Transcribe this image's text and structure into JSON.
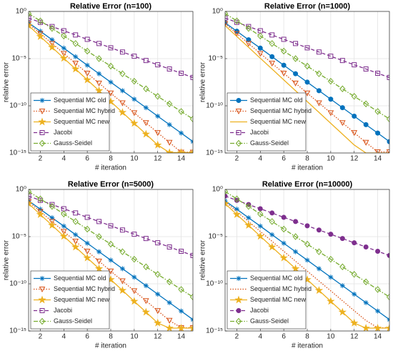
{
  "chart_data": [
    {
      "type": "line",
      "title": "Relative Error (n=100)",
      "x_label": "# iteration",
      "y_label": "relative error",
      "log_y": true,
      "grid": true,
      "legend": "lower left",
      "x": [
        1,
        2,
        3,
        4,
        5,
        6,
        7,
        8,
        9,
        10,
        11,
        12,
        13,
        14,
        15
      ],
      "xlim": [
        1,
        15
      ],
      "xticks": [
        2,
        4,
        6,
        8,
        10,
        12,
        14
      ],
      "ylim": [
        1e-15,
        1
      ],
      "yticks": [
        {
          "value": 1e-15,
          "label": "10⁻¹⁵"
        },
        {
          "value": 1e-10,
          "label": "10⁻¹⁰"
        },
        {
          "value": 1e-05,
          "label": "10⁻⁵"
        },
        {
          "value": 1,
          "label": "10⁰"
        }
      ],
      "series": [
        {
          "name": "Sequential MC old",
          "color": "#0072bd",
          "marker": "asterisk",
          "linestyle": "solid",
          "values": [
            0.063,
            0.008,
            0.001,
            0.00013,
            1.6e-05,
            2e-06,
            2.5e-07,
            3.2e-08,
            4e-09,
            5e-10,
            6.3e-11,
            8e-12,
            1e-12,
            1.3e-13,
            1.6e-14
          ]
        },
        {
          "name": "Sequential MC hybrid",
          "color": "#d95319",
          "marker": "triangle-down",
          "linestyle": "dotted",
          "values": [
            0.05,
            0.0045,
            0.0004,
            3.5e-05,
            3.2e-06,
            2.8e-07,
            2.5e-08,
            2.2e-09,
            2e-10,
            1.8e-11,
            1.6e-12,
            1.4e-13,
            1.3e-14,
            1.2e-15,
            1.2e-15
          ]
        },
        {
          "name": "Sequential MC new",
          "color": "#edb120",
          "marker": "star",
          "linestyle": "solid",
          "values": [
            0.032,
            0.0022,
            0.00016,
            1.1e-05,
            8e-07,
            5.6e-08,
            4e-09,
            2.8e-10,
            2e-11,
            1.4e-12,
            1e-13,
            7e-15,
            1.1e-15,
            1.1e-15,
            1.1e-15
          ]
        },
        {
          "name": "Jacobi",
          "color": "#7e2f8e",
          "marker": "square",
          "linestyle": "dashed",
          "values": [
            0.2,
            0.07,
            0.025,
            0.009,
            0.0032,
            0.0011,
            0.0004,
            0.00014,
            5e-05,
            1.8e-05,
            6.3e-06,
            2.2e-06,
            8e-07,
            2.8e-07,
            1e-07
          ]
        },
        {
          "name": "Gauss-Seidel",
          "color": "#77ac30",
          "marker": "diamond",
          "linestyle": "dashdot",
          "values": [
            0.6,
            0.1,
            0.016,
            0.0025,
            0.0004,
            6.3e-05,
            1e-05,
            1.6e-06,
            2.5e-07,
            4e-08,
            6.3e-09,
            1e-09,
            1.6e-10,
            2.5e-11,
            4e-12
          ]
        }
      ]
    },
    {
      "type": "line",
      "title": "Relative Error (n=1000)",
      "x_label": "# iteration",
      "y_label": "relative error",
      "log_y": true,
      "grid": true,
      "legend": "lower left",
      "x": [
        1,
        2,
        3,
        4,
        5,
        6,
        7,
        8,
        9,
        10,
        11,
        12,
        13,
        14,
        15
      ],
      "xlim": [
        1,
        15
      ],
      "xticks": [
        2,
        4,
        6,
        8,
        10,
        12,
        14
      ],
      "ylim": [
        1e-15,
        1
      ],
      "yticks": [
        {
          "value": 1e-15,
          "label": "10⁻¹⁵"
        },
        {
          "value": 1e-10,
          "label": "10⁻¹⁰"
        },
        {
          "value": 1e-05,
          "label": "10⁻⁵"
        },
        {
          "value": 1,
          "label": "10⁰"
        }
      ],
      "series": [
        {
          "name": "Sequential MC old",
          "color": "#0072bd",
          "marker": "circle",
          "linestyle": "solid",
          "values": [
            0.063,
            0.008,
            0.001,
            0.00013,
            1.6e-05,
            2e-06,
            2.5e-07,
            3.2e-08,
            4e-09,
            5e-10,
            6.3e-11,
            8e-12,
            1e-12,
            1.3e-13,
            1.6e-14
          ]
        },
        {
          "name": "Sequential MC hybrid",
          "color": "#d95319",
          "marker": "triangle-down",
          "linestyle": "dotted",
          "values": [
            0.05,
            0.0045,
            0.0004,
            3.5e-05,
            3.2e-06,
            2.8e-07,
            2.5e-08,
            2.2e-09,
            2e-10,
            1.8e-11,
            1.6e-12,
            1.4e-13,
            1.3e-14,
            1.3e-15,
            1.3e-15
          ]
        },
        {
          "name": "Sequential MC new",
          "color": "#edb120",
          "marker": "none",
          "linestyle": "solid",
          "values": [
            0.032,
            0.0022,
            0.00016,
            1.1e-05,
            8e-07,
            5.6e-08,
            4e-09,
            2.8e-10,
            2e-11,
            1.4e-12,
            1e-13,
            7e-15,
            1e-15,
            1e-15,
            1e-15
          ]
        },
        {
          "name": "Jacobi",
          "color": "#7e2f8e",
          "marker": "square",
          "linestyle": "dashed",
          "values": [
            0.2,
            0.07,
            0.025,
            0.009,
            0.0032,
            0.0011,
            0.0004,
            0.00014,
            5e-05,
            1.8e-05,
            6.3e-06,
            2.2e-06,
            8e-07,
            2.8e-07,
            1e-07
          ]
        },
        {
          "name": "Gauss-Seidel",
          "color": "#77ac30",
          "marker": "diamond",
          "linestyle": "dashdot",
          "values": [
            0.6,
            0.1,
            0.016,
            0.0025,
            0.0004,
            6.3e-05,
            1e-05,
            1.6e-06,
            2.5e-07,
            4e-08,
            6.3e-09,
            1e-09,
            1.6e-10,
            2.5e-11,
            4e-12
          ]
        }
      ]
    },
    {
      "type": "line",
      "title": "Relative Error (n=5000)",
      "x_label": "# iteration",
      "y_label": "relative error",
      "log_y": true,
      "grid": true,
      "legend": "lower left",
      "x": [
        1,
        2,
        3,
        4,
        5,
        6,
        7,
        8,
        9,
        10,
        11,
        12,
        13,
        14,
        15
      ],
      "xlim": [
        1,
        15
      ],
      "xticks": [
        2,
        4,
        6,
        8,
        10,
        12,
        14
      ],
      "ylim": [
        1e-15,
        1
      ],
      "yticks": [
        {
          "value": 1e-15,
          "label": "10⁻¹⁵"
        },
        {
          "value": 1e-10,
          "label": "10⁻¹⁰"
        },
        {
          "value": 1e-05,
          "label": "10⁻⁵"
        },
        {
          "value": 1,
          "label": "10⁰"
        }
      ],
      "series": [
        {
          "name": "Sequential MC old",
          "color": "#0072bd",
          "marker": "asterisk",
          "linestyle": "solid",
          "values": [
            0.063,
            0.008,
            0.001,
            0.00013,
            1.6e-05,
            2e-06,
            2.5e-07,
            3.2e-08,
            4e-09,
            5e-10,
            6.3e-11,
            8e-12,
            1e-12,
            1.3e-13,
            1.6e-14
          ]
        },
        {
          "name": "Sequential MC hybrid",
          "color": "#d95319",
          "marker": "triangle-down",
          "linestyle": "dotted",
          "values": [
            0.05,
            0.0045,
            0.0004,
            3.5e-05,
            3.2e-06,
            2.8e-07,
            2.5e-08,
            2.2e-09,
            2e-10,
            1.8e-11,
            1.6e-12,
            1.4e-13,
            1.3e-14,
            2.2e-15,
            2.2e-15
          ]
        },
        {
          "name": "Sequential MC new",
          "color": "#edb120",
          "marker": "star",
          "linestyle": "solid",
          "values": [
            0.032,
            0.0022,
            0.00016,
            1.1e-05,
            8e-07,
            5.6e-08,
            4e-09,
            2.8e-10,
            2e-11,
            1.4e-12,
            1e-13,
            7e-15,
            2e-15,
            2e-15,
            2e-15
          ]
        },
        {
          "name": "Jacobi",
          "color": "#7e2f8e",
          "marker": "square",
          "linestyle": "dashed",
          "values": [
            0.2,
            0.07,
            0.025,
            0.009,
            0.0032,
            0.0011,
            0.0004,
            0.00014,
            5e-05,
            1.8e-05,
            6.3e-06,
            2.2e-06,
            8e-07,
            2.8e-07,
            1e-07
          ]
        },
        {
          "name": "Gauss-Seidel",
          "color": "#77ac30",
          "marker": "diamond",
          "linestyle": "dashdot",
          "values": [
            0.6,
            0.1,
            0.016,
            0.0025,
            0.0004,
            6.3e-05,
            1e-05,
            1.6e-06,
            2.5e-07,
            4e-08,
            6.3e-09,
            1e-09,
            1.6e-10,
            2.5e-11,
            4e-12
          ]
        }
      ]
    },
    {
      "type": "line",
      "title": "Relative Error (n=10000)",
      "x_label": "# iteration",
      "y_label": "relative error",
      "log_y": true,
      "grid": true,
      "legend": "lower left",
      "x": [
        1,
        2,
        3,
        4,
        5,
        6,
        7,
        8,
        9,
        10,
        11,
        12,
        13,
        14,
        15
      ],
      "xlim": [
        1,
        15
      ],
      "xticks": [
        2,
        4,
        6,
        8,
        10,
        12,
        14
      ],
      "ylim": [
        1e-15,
        1
      ],
      "yticks": [
        {
          "value": 1e-15,
          "label": "10⁻¹⁵"
        },
        {
          "value": 1e-10,
          "label": "10⁻¹⁰"
        },
        {
          "value": 1e-05,
          "label": "10⁻⁵"
        },
        {
          "value": 1,
          "label": "10⁰"
        }
      ],
      "series": [
        {
          "name": "Sequential MC old",
          "color": "#0072bd",
          "marker": "asterisk",
          "linestyle": "solid",
          "values": [
            0.063,
            0.008,
            0.001,
            0.00013,
            1.6e-05,
            2e-06,
            2.5e-07,
            3.2e-08,
            4e-09,
            5e-10,
            6.3e-11,
            8e-12,
            1e-12,
            1.3e-13,
            1.6e-14
          ]
        },
        {
          "name": "Sequential MC hybrid",
          "color": "#d95319",
          "marker": "none",
          "linestyle": "dotted",
          "values": [
            0.05,
            0.0045,
            0.0004,
            3.5e-05,
            3.2e-06,
            2.8e-07,
            2.5e-08,
            2.2e-09,
            2e-10,
            1.8e-11,
            1.6e-12,
            1.4e-13,
            1.3e-14,
            2.2e-15,
            2.2e-15
          ]
        },
        {
          "name": "Sequential MC new",
          "color": "#edb120",
          "marker": "star",
          "linestyle": "solid",
          "values": [
            0.032,
            0.0022,
            0.00016,
            1.1e-05,
            8e-07,
            5.6e-08,
            4e-09,
            2.8e-10,
            2e-11,
            1.4e-12,
            1e-13,
            7e-15,
            2e-15,
            2e-15,
            2e-15
          ]
        },
        {
          "name": "Jacobi",
          "color": "#7e2f8e",
          "marker": "circle",
          "linestyle": "dashed",
          "values": [
            0.2,
            0.07,
            0.025,
            0.009,
            0.0032,
            0.0011,
            0.0004,
            0.00014,
            5e-05,
            1.8e-05,
            6.3e-06,
            2.2e-06,
            8e-07,
            2.8e-07,
            1e-07
          ]
        },
        {
          "name": "Gauss-Seidel",
          "color": "#77ac30",
          "marker": "diamond",
          "linestyle": "dashdot",
          "values": [
            0.6,
            0.1,
            0.016,
            0.0025,
            0.0004,
            6.3e-05,
            1e-05,
            1.6e-06,
            2.5e-07,
            4e-08,
            6.3e-09,
            1e-09,
            1.6e-10,
            2.5e-11,
            4e-12
          ]
        }
      ]
    }
  ]
}
